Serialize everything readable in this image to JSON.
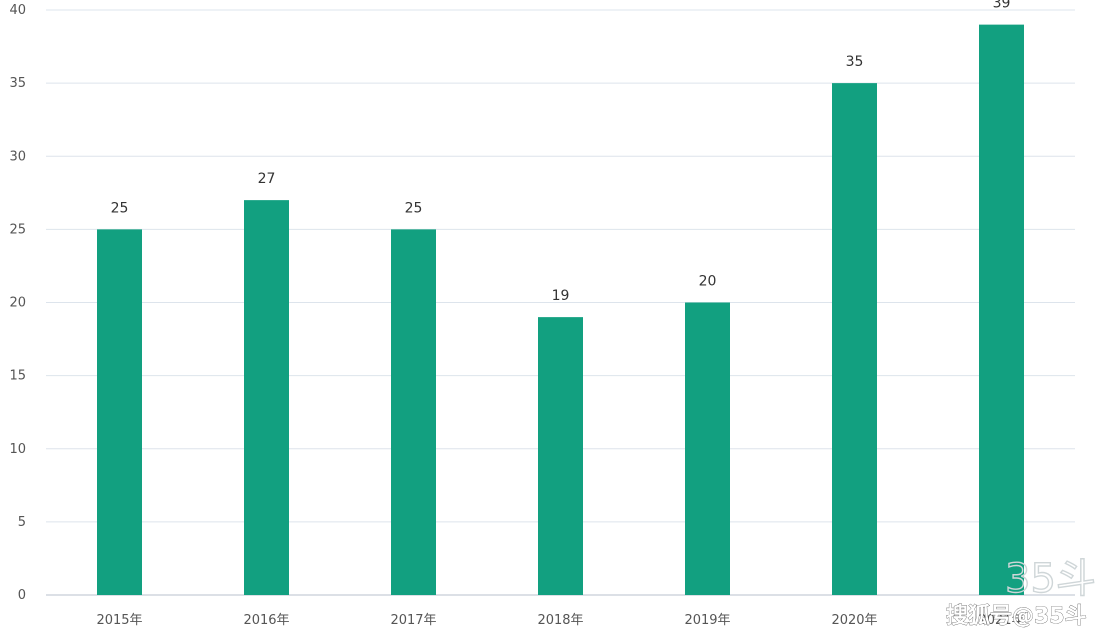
{
  "chart_data": {
    "type": "bar",
    "categories": [
      "2015年",
      "2016年",
      "2017年",
      "2018年",
      "2019年",
      "2020年",
      "2021年"
    ],
    "values": [
      25,
      27,
      25,
      19,
      20,
      35,
      39
    ],
    "ylim": [
      0,
      40
    ],
    "yticks": [
      0,
      5,
      10,
      15,
      20,
      25,
      30,
      35,
      40
    ],
    "bar_color": "#12a080",
    "grid": true,
    "legend": "none"
  },
  "watermarks": {
    "logo": "35斗",
    "platform": "搜狐号@35斗"
  }
}
